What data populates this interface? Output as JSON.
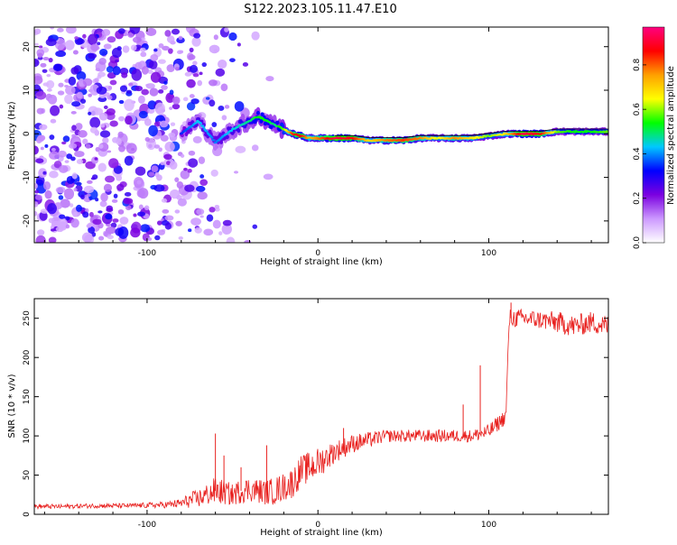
{
  "title": "S122.2023.105.11.47.E10",
  "chart_data": [
    {
      "type": "heatmap",
      "xlabel": "Height of straight line (km)",
      "ylabel": "Frequency (Hz)",
      "xlim": [
        -166,
        170
      ],
      "ylim": [
        -25,
        24.5
      ],
      "x_ticks": [
        -100,
        0,
        100
      ],
      "x_tick_labels": [
        "-100",
        "0",
        "100"
      ],
      "y_ticks": [
        -20,
        -10,
        0,
        10,
        20
      ],
      "y_tick_labels": [
        "-20",
        "-10",
        "0",
        "10",
        "20"
      ],
      "ridge": {
        "x": [
          -80,
          -70,
          -60,
          -50,
          -40,
          -35,
          -30,
          -25,
          -20,
          -15,
          -10,
          -5,
          0,
          10,
          20,
          30,
          40,
          50,
          60,
          70,
          80,
          90,
          100,
          110,
          120,
          130,
          140,
          150,
          160,
          170
        ],
        "freq": [
          0,
          3,
          -2,
          1,
          3,
          4,
          3,
          2,
          1,
          0,
          -0.5,
          -1,
          -1,
          -1,
          -1,
          -1.5,
          -1.5,
          -1.5,
          -1,
          -1,
          -1,
          -1,
          -0.5,
          0,
          0,
          0,
          0.5,
          0.5,
          0.5,
          0.5
        ],
        "amplitude": [
          0.35,
          0.45,
          0.4,
          0.45,
          0.5,
          0.55,
          0.55,
          0.5,
          0.6,
          0.85,
          0.9,
          0.75,
          0.8,
          0.95,
          0.9,
          0.7,
          0.8,
          0.85,
          0.8,
          0.65,
          0.8,
          0.7,
          0.6,
          0.7,
          0.95,
          0.9,
          0.6,
          0.55,
          0.55,
          0.6
        ]
      },
      "colorbar": {
        "label": "Normalized spectral amplitude",
        "range": [
          0,
          0.97
        ],
        "ticks": [
          0.0,
          0.2,
          0.4,
          0.6,
          0.8
        ],
        "tick_labels": [
          "0.0",
          "0.2",
          "0.4",
          "0.6",
          "0.8"
        ],
        "colors": [
          "#ffffff",
          "#cc99ff",
          "#7b00e0",
          "#0000ff",
          "#00c8ff",
          "#00ff00",
          "#ffff00",
          "#ffa000",
          "#ff0000",
          "#ff0080"
        ]
      },
      "grid": false
    },
    {
      "type": "line",
      "xlabel": "Height of straight line (km)",
      "ylabel": "SNR (10 * v/v)",
      "xlim": [
        -166,
        170
      ],
      "ylim": [
        0,
        275
      ],
      "x_ticks": [
        -100,
        0,
        100
      ],
      "x_tick_labels": [
        "-100",
        "0",
        "100"
      ],
      "y_ticks": [
        0,
        50,
        100,
        150,
        200,
        250
      ],
      "y_tick_labels": [
        "0",
        "50",
        "100",
        "150",
        "200",
        "250"
      ],
      "series": [
        {
          "color": "#e8201e",
          "x": [
            -166,
            -150,
            -130,
            -110,
            -90,
            -80,
            -75,
            -70,
            -65,
            -60,
            -55,
            -50,
            -45,
            -40,
            -35,
            -30,
            -25,
            -20,
            -15,
            -10,
            -5,
            0,
            10,
            20,
            30,
            40,
            50,
            60,
            70,
            80,
            90,
            100,
            105,
            110,
            112,
            120,
            130,
            140,
            150,
            160,
            170
          ],
          "y": [
            10,
            10,
            11,
            11,
            12,
            14,
            18,
            20,
            25,
            30,
            28,
            25,
            30,
            32,
            30,
            28,
            30,
            35,
            40,
            55,
            60,
            65,
            80,
            90,
            95,
            100,
            100,
            100,
            100,
            100,
            100,
            105,
            115,
            125,
            250,
            250,
            248,
            245,
            240,
            245,
            240
          ],
          "noise": [
            3,
            3,
            3,
            3,
            4,
            6,
            10,
            12,
            14,
            18,
            16,
            14,
            16,
            16,
            16,
            16,
            18,
            18,
            20,
            20,
            20,
            20,
            14,
            12,
            10,
            8,
            8,
            8,
            8,
            8,
            8,
            10,
            10,
            10,
            12,
            12,
            12,
            14,
            14,
            14,
            14
          ],
          "spikes": [
            {
              "x": -60,
              "y": 103
            },
            {
              "x": -55,
              "y": 75
            },
            {
              "x": -45,
              "y": 60
            },
            {
              "x": -30,
              "y": 88
            },
            {
              "x": 15,
              "y": 110
            },
            {
              "x": 85,
              "y": 140
            },
            {
              "x": 95,
              "y": 190
            },
            {
              "x": 113,
              "y": 270
            }
          ]
        }
      ],
      "grid": false
    }
  ]
}
